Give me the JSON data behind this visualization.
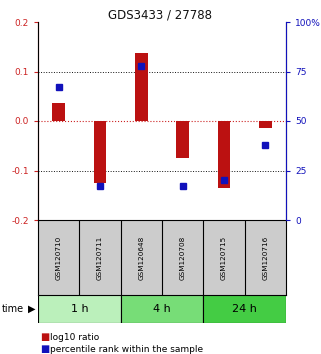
{
  "title": "GDS3433 / 27788",
  "samples": [
    "GSM120710",
    "GSM120711",
    "GSM120648",
    "GSM120708",
    "GSM120715",
    "GSM120716"
  ],
  "log10_ratio": [
    0.037,
    -0.125,
    0.138,
    -0.075,
    -0.135,
    -0.015
  ],
  "percentile_rank": [
    67,
    17,
    78,
    17,
    20,
    38
  ],
  "groups": [
    {
      "label": "1 h",
      "indices": [
        0,
        1
      ],
      "color": "#bbf0bb"
    },
    {
      "label": "4 h",
      "indices": [
        2,
        3
      ],
      "color": "#77dd77"
    },
    {
      "label": "24 h",
      "indices": [
        4,
        5
      ],
      "color": "#44cc44"
    }
  ],
  "ylim_left": [
    -0.2,
    0.2
  ],
  "ylim_right": [
    0,
    100
  ],
  "yticks_left": [
    -0.2,
    -0.1,
    0.0,
    0.1,
    0.2
  ],
  "yticks_right": [
    0,
    25,
    50,
    75,
    100
  ],
  "ytick_labels_right": [
    "0",
    "25",
    "50",
    "75",
    "100%"
  ],
  "bar_color": "#bb1111",
  "dot_color": "#1111bb",
  "zero_line_color": "#cc2222",
  "grid_color": "#111111",
  "title_color": "#111111",
  "left_axis_color": "#cc2222",
  "right_axis_color": "#1111bb",
  "sample_bg": "#cccccc",
  "bar_width": 0.3
}
